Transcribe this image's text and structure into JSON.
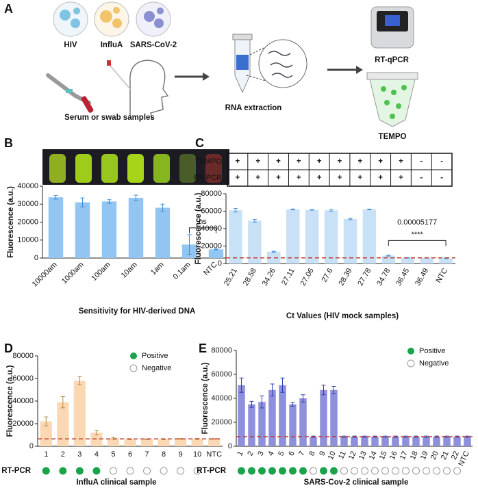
{
  "panel_a": {
    "label": "A",
    "viruses": [
      "HIV",
      "InfluA",
      "SARS-CoV-2"
    ],
    "sample_caption": "Serum or swab samples",
    "extraction": "RNA extraction",
    "instrument": "RT-qPCR",
    "assay": "TEMPO"
  },
  "chart_data": [
    {
      "type": "bar",
      "panel": "B",
      "ylabel": "Fluorescence (a.u.)",
      "xlabel": "Sensitivity for HIV-derived DNA",
      "categories": [
        "10000am",
        "1000am",
        "100am",
        "10am",
        "1am",
        "0.1am",
        "NTC"
      ],
      "values": [
        33800,
        31000,
        31500,
        33500,
        28000,
        7500,
        4800
      ],
      "errors": [
        1000,
        2500,
        1000,
        1500,
        2000,
        5500,
        200
      ],
      "color": "#93c5f2",
      "error_color": "#3a8ad6",
      "ylim": [
        0,
        40000
      ],
      "yticks": [
        0,
        10000,
        20000,
        30000,
        40000
      ],
      "annotation": "ns"
    },
    {
      "type": "bar",
      "panel": "C",
      "ylabel": "Fluorescence (a.u.)",
      "xlabel": "Ct Values (HIV mock samples)",
      "table": [
        {
          "label": "TEMPO",
          "cells": [
            "+",
            "+",
            "+",
            "+",
            "+",
            "+",
            "+",
            "+",
            "+",
            "-",
            "-"
          ]
        },
        {
          "label": "RT-PCR",
          "cells": [
            "+",
            "+",
            "+",
            "+",
            "+",
            "+",
            "+",
            "+",
            "+",
            "-",
            "-"
          ]
        }
      ],
      "categories": [
        "25.21",
        "28.58",
        "34.26",
        "27.11",
        "27.06",
        "27.6",
        "28.39",
        "27.78",
        "34.78",
        "36.45",
        "36.49",
        "NTC"
      ],
      "values": [
        61000,
        49000,
        13500,
        62000,
        61500,
        61000,
        51000,
        62000,
        9000,
        6500,
        6500,
        6000
      ],
      "errors": [
        2000,
        1500,
        500,
        500,
        300,
        1000,
        800,
        400,
        500,
        300,
        300,
        200
      ],
      "color": "#c9e1f7",
      "error_color": "#3a8ad6",
      "ylim": [
        0,
        80000
      ],
      "yticks": [
        0,
        20000,
        40000,
        60000,
        80000
      ],
      "threshold": 6500,
      "threshold_color": "#c0392b",
      "annotation": "0.00005177",
      "significance": "****"
    },
    {
      "type": "bar",
      "panel": "D",
      "ylabel": "Fluorescence (a.u.)",
      "xlabel": "InfluA clinical sample",
      "categories": [
        "1",
        "2",
        "3",
        "4",
        "5",
        "6",
        "7",
        "8",
        "9",
        "10",
        "NTC"
      ],
      "values": [
        22000,
        39000,
        58000,
        12000,
        7000,
        6200,
        6200,
        6200,
        6500,
        6500,
        6500
      ],
      "errors": [
        4000,
        5000,
        3500,
        2000,
        800,
        300,
        300,
        300,
        400,
        400,
        300
      ],
      "color": "#fbd8b4",
      "error_color": "#b58a3a",
      "ylim": [
        0,
        80000
      ],
      "yticks": [
        0,
        20000,
        40000,
        60000,
        80000
      ],
      "threshold": 6500,
      "threshold_color": "#c0392b",
      "legend": {
        "positive": "Positive",
        "negative": "Negative"
      },
      "rt_pcr_label": "RT-PCR",
      "rt_pcr": [
        true,
        true,
        true,
        true,
        false,
        false,
        false,
        false,
        false,
        false
      ]
    },
    {
      "type": "bar",
      "panel": "E",
      "ylabel": "Fluorescence (a.u.)",
      "xlabel": "SARS-Cov-2 clinical sample",
      "categories": [
        "1",
        "2",
        "3",
        "4",
        "5",
        "6",
        "7",
        "8",
        "9",
        "10",
        "11",
        "12",
        "13",
        "14",
        "15",
        "16",
        "17",
        "18",
        "19",
        "20",
        "21",
        "22",
        "NTC"
      ],
      "values": [
        51000,
        35000,
        37000,
        47000,
        51000,
        35000,
        40000,
        8000,
        47000,
        47000,
        8000,
        8000,
        8000,
        8000,
        8000,
        8000,
        8000,
        8000,
        8000,
        8000,
        8000,
        8000,
        8000
      ],
      "errors": [
        6000,
        2500,
        5000,
        5000,
        6000,
        1500,
        3000,
        500,
        4000,
        3000,
        500,
        500,
        500,
        500,
        500,
        500,
        500,
        500,
        500,
        500,
        500,
        500,
        500
      ],
      "color": "#8e90dc",
      "error_color": "#2c3cb0",
      "ylim": [
        0,
        80000
      ],
      "yticks": [
        0,
        20000,
        40000,
        60000,
        80000
      ],
      "threshold": 8000,
      "threshold_color": "#c0392b",
      "legend": {
        "positive": "Positive",
        "negative": "Negative"
      },
      "rt_pcr_label": "RT-PCR",
      "rt_pcr": [
        true,
        true,
        true,
        true,
        true,
        true,
        true,
        false,
        true,
        true,
        false,
        false,
        false,
        false,
        false,
        false,
        false,
        false,
        false,
        false,
        false,
        false
      ]
    }
  ]
}
